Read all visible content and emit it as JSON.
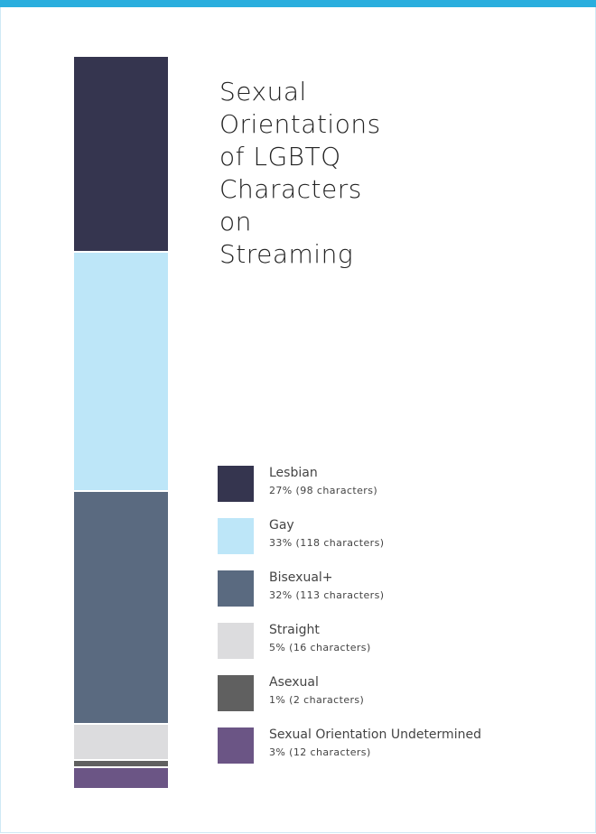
{
  "chart_data": {
    "type": "stacked-bar",
    "title": "Sexual Orientations of LGBTQ Characters on Streaming",
    "series": [
      {
        "name": "Lesbian",
        "color": "#35354f",
        "values": [
          27
        ],
        "value_labels": [
          "27% (98 characters)"
        ]
      },
      {
        "name": "Gay",
        "color": "#bde6f8",
        "values": [
          33
        ],
        "value_labels": [
          "33% (118 characters)"
        ]
      },
      {
        "name": "Bisexual+",
        "color": "#5a6a80",
        "values": [
          32
        ],
        "value_labels": [
          "32% (113 characters)"
        ]
      },
      {
        "name": "Straight",
        "color": "#dcdcde",
        "values": [
          5
        ],
        "value_labels": [
          "5% (16 characters)"
        ]
      },
      {
        "name": "Asexual",
        "color": "#606060",
        "values": [
          1
        ],
        "value_labels": [
          "1% (2 characters)"
        ]
      },
      {
        "name": "Sexual Orientation Undetermined",
        "color": "#6b5585",
        "values": [
          3
        ],
        "value_labels": [
          "3% (12 characters)"
        ]
      }
    ]
  }
}
